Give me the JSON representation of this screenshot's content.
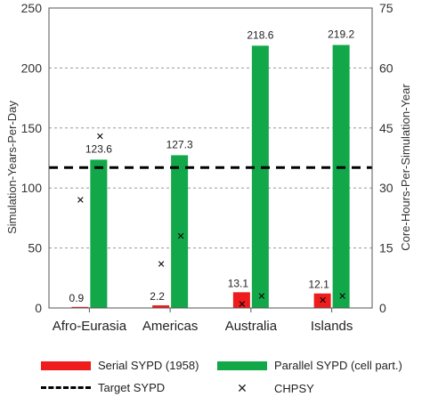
{
  "chart_data": {
    "type": "bar",
    "categories": [
      "Afro-Eurasia",
      "Americas",
      "Australia",
      "Islands"
    ],
    "series": [
      {
        "name": "Serial SYPD (1958)",
        "values": [
          0.9,
          2.2,
          13.1,
          12.1
        ],
        "color": "#ee1c1c"
      },
      {
        "name": "Parallel SYPD (cell part.)",
        "values": [
          123.6,
          127.3,
          218.6,
          219.2
        ],
        "color": "#12a84a"
      }
    ],
    "data_labels": {
      "serial": [
        "0.9",
        "2.2",
        "13.1",
        "12.1"
      ],
      "parallel": [
        "123.6",
        "127.3",
        "218.6",
        "219.2"
      ]
    },
    "target": {
      "name": "Target SYPD",
      "value": 117
    },
    "chpsy": {
      "name": "CHPSY",
      "values": [
        43,
        27,
        3,
        3
      ],
      "secondary_values": [
        [
          43,
          27
        ],
        [
          18,
          11
        ],
        [
          3,
          1
        ],
        [
          3,
          2
        ]
      ]
    },
    "y_left": {
      "label": "Simulation-Years-Per-Day",
      "min": 0,
      "max": 250,
      "ticks": [
        "0",
        "50",
        "100",
        "150",
        "200",
        "250"
      ]
    },
    "y_right": {
      "label": "Core-Hours-Per-Simulation-Year",
      "min": 0,
      "max": 75,
      "ticks": [
        "0",
        "15",
        "30",
        "45",
        "60",
        "75"
      ]
    },
    "grid": true,
    "legend_position": "bottom"
  },
  "legend": {
    "serial": "Serial SYPD (1958)",
    "parallel": "Parallel SYPD (cell part.)",
    "target": "Target SYPD",
    "chpsy": "CHPSY"
  }
}
